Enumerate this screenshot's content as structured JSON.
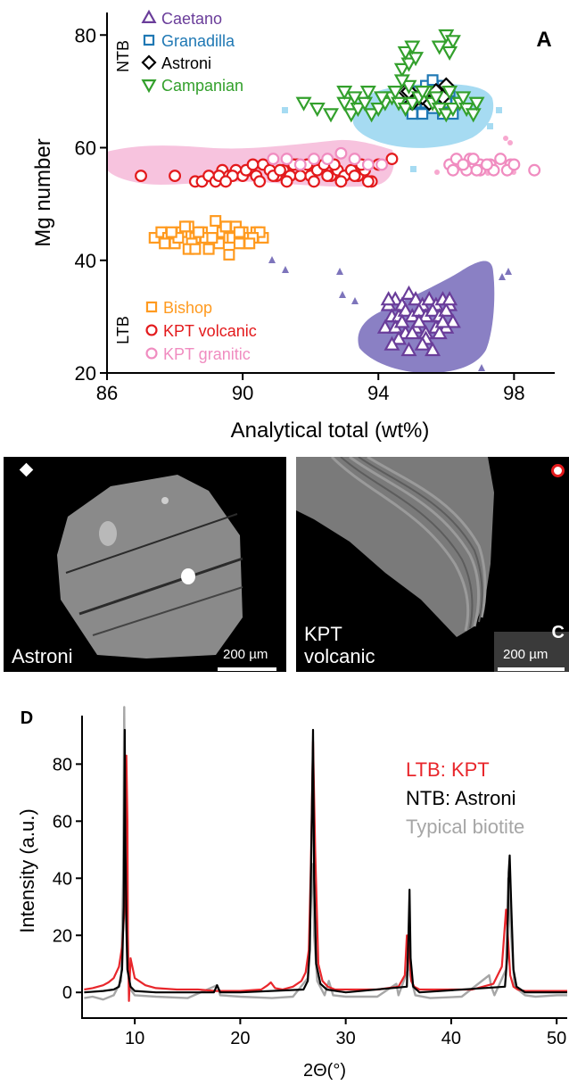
{
  "panel_a": {
    "letter": "A",
    "region_labels": {
      "ntb": "NTB",
      "ltb": "LTB"
    }
  },
  "panel_b": {
    "label": "Astroni",
    "scale": "200 µm",
    "symbol": "diamond-icon"
  },
  "panel_c": {
    "letter": "C",
    "label_line1": "KPT",
    "label_line2": "volcanic",
    "scale": "200 µm",
    "symbol": "circle-icon"
  },
  "panel_d": {
    "letter": "D"
  },
  "chart_data": [
    {
      "type": "scatter",
      "title": "",
      "xlabel": "Analytical total (wt%)",
      "ylabel": "Mg number",
      "xlim": [
        86,
        99.2
      ],
      "ylim": [
        20,
        84
      ],
      "xticks": [
        86,
        90,
        94,
        98
      ],
      "yticks": [
        20,
        40,
        60,
        80
      ],
      "legend_placement": "top-left and bottom-left",
      "series": [
        {
          "name": "Caetano",
          "marker": "triangle-up",
          "color": "#6a3d9a",
          "x": [
            94.3,
            94.5,
            94.7,
            94.9,
            95.1,
            95.3,
            95.5,
            95.7,
            95.9,
            96.1,
            94.4,
            94.6,
            94.8,
            95.0,
            95.2,
            95.4,
            95.6,
            95.8,
            96.0,
            96.2,
            94.2,
            94.5,
            94.8,
            95.1,
            95.4,
            95.7,
            96.0,
            94.6,
            95.0,
            95.4,
            95.8,
            94.9,
            95.3,
            95.6,
            94.4,
            95.2,
            95.9,
            94.7,
            96.1,
            94.3
          ],
          "y": [
            32,
            33,
            32,
            34,
            33,
            32,
            33,
            32,
            33,
            32,
            30,
            30,
            31,
            30,
            31,
            30,
            31,
            30,
            31,
            29,
            28,
            28,
            27,
            28,
            27,
            28,
            28,
            26,
            27,
            26,
            27,
            24,
            25,
            24,
            25,
            29,
            29,
            29,
            33,
            33
          ]
        },
        {
          "name": "Granadilla",
          "marker": "square",
          "color": "#1f78b4",
          "x": [
            95.0,
            95.3,
            95.6,
            95.9,
            96.2,
            95.1,
            95.4,
            95.7,
            96.0,
            96.3,
            95.2,
            95.5,
            95.8,
            96.1,
            95.4,
            95.7,
            96.0,
            95.6,
            95.9
          ],
          "y": [
            66,
            66,
            67,
            66,
            66,
            68,
            68,
            69,
            68,
            68,
            70,
            70,
            69,
            70,
            71,
            71,
            70,
            72,
            71
          ]
        },
        {
          "name": "Astroni",
          "marker": "diamond",
          "color": "#000000",
          "x": [
            94.6,
            94.8,
            95.0,
            95.2,
            95.5,
            95.7,
            96.0,
            94.9,
            95.3,
            95.9
          ],
          "y": [
            69,
            70,
            68,
            69,
            68,
            70,
            71,
            70,
            69,
            69
          ]
        },
        {
          "name": "Campanian",
          "marker": "triangle-down",
          "color": "#33a02c",
          "x": [
            91.8,
            92.2,
            92.6,
            93.0,
            93.2,
            93.4,
            93.6,
            93.8,
            94.0,
            94.2,
            94.4,
            94.6,
            94.8,
            95.0,
            95.2,
            95.4,
            95.6,
            95.8,
            96.0,
            96.2,
            96.4,
            96.6,
            96.8,
            93.0,
            93.3,
            93.7,
            94.1,
            94.5,
            94.9,
            95.3,
            95.7,
            96.1,
            96.5,
            96.9,
            94.7,
            94.9,
            95.1,
            94.8,
            95.0,
            95.8,
            96.0,
            96.2,
            96.1,
            94.7
          ],
          "y": [
            68,
            67,
            66,
            68,
            66,
            67,
            68,
            66,
            67,
            68,
            69,
            68,
            67,
            68,
            69,
            70,
            68,
            67,
            66,
            67,
            68,
            67,
            66,
            70,
            69,
            70,
            69,
            70,
            71,
            70,
            69,
            70,
            69,
            68,
            74,
            75,
            76,
            77,
            78,
            78,
            80,
            79,
            77,
            72
          ]
        },
        {
          "name": "Bishop",
          "marker": "square",
          "color": "#ff9a1f",
          "x": [
            87.4,
            87.6,
            87.8,
            88.0,
            88.2,
            88.4,
            88.6,
            88.8,
            89.0,
            89.2,
            89.4,
            89.6,
            89.8,
            90.0,
            90.2,
            90.4,
            90.6,
            87.7,
            88.1,
            88.5,
            88.9,
            89.3,
            89.7,
            90.1,
            90.5,
            87.9,
            88.3,
            88.7,
            89.1,
            89.5,
            89.9,
            90.3,
            88.4,
            89.0,
            89.6,
            90.2,
            89.2,
            89.5,
            88.6,
            89.9
          ],
          "y": [
            44,
            45,
            44,
            43,
            45,
            46,
            44,
            45,
            43,
            44,
            45,
            44,
            46,
            45,
            44,
            45,
            44,
            43,
            44,
            43,
            44,
            43,
            44,
            43,
            45,
            45,
            46,
            45,
            44,
            46,
            43,
            44,
            42,
            42,
            41,
            43,
            47,
            46,
            42,
            45
          ]
        },
        {
          "name": "KPT volcanic",
          "marker": "circle",
          "color": "#e31a1c",
          "x": [
            87.0,
            88.0,
            88.6,
            88.8,
            89.0,
            89.2,
            89.4,
            89.6,
            89.8,
            90.0,
            90.2,
            90.4,
            90.6,
            90.8,
            91.0,
            91.2,
            91.4,
            91.6,
            91.8,
            92.0,
            92.2,
            92.4,
            92.6,
            92.8,
            93.0,
            93.2,
            93.4,
            93.6,
            93.8,
            94.0,
            94.4,
            89.3,
            89.7,
            90.1,
            90.5,
            90.9,
            91.3,
            91.7,
            92.1,
            92.5,
            92.9,
            93.3,
            93.7,
            90.3,
            91.1,
            91.9,
            92.7,
            93.5,
            89.5,
            91.5
          ],
          "y": [
            55,
            55,
            54,
            54,
            55,
            54,
            56,
            55,
            56,
            55,
            56,
            55,
            57,
            56,
            55,
            56,
            55,
            57,
            56,
            55,
            56,
            57,
            55,
            56,
            55,
            56,
            55,
            56,
            54,
            57,
            58,
            55,
            55,
            56,
            54,
            55,
            54,
            55,
            54,
            55,
            54,
            55,
            54,
            57,
            56,
            57,
            57,
            57,
            54,
            57
          ]
        },
        {
          "name": "KPT granitic",
          "marker": "circle",
          "color": "#f08cc0",
          "x": [
            90.9,
            91.3,
            91.7,
            92.1,
            92.5,
            92.9,
            93.3,
            93.7,
            94.1,
            96.1,
            96.4,
            96.7,
            97.0,
            97.3,
            97.6,
            97.9,
            96.2,
            96.6,
            97.0,
            97.4,
            97.8,
            98.6,
            96.3,
            96.8,
            97.2,
            98.0,
            96.5,
            96.9
          ],
          "y": [
            58,
            58,
            57,
            58,
            58,
            59,
            58,
            57,
            57,
            57,
            57,
            58,
            57,
            57,
            58,
            57,
            56,
            56,
            56,
            56,
            56,
            56,
            58,
            58,
            57,
            57,
            57,
            56
          ]
        }
      ]
    },
    {
      "type": "line",
      "title": "",
      "xlabel": "2Θ(°)",
      "ylabel": "Intensity (a.u.)",
      "xlim": [
        5,
        51
      ],
      "ylim": [
        -9,
        97
      ],
      "xticks": [
        10,
        20,
        30,
        40,
        50
      ],
      "yticks": [
        0,
        20,
        40,
        60,
        80
      ],
      "legend_placement": "top-right",
      "series": [
        {
          "name": "LTB: KPT",
          "color": "#e8262b",
          "x": [
            5.2,
            6,
            7,
            7.5,
            8,
            8.5,
            8.8,
            9.0,
            9.1,
            9.2,
            9.3,
            9.35,
            9.45,
            9.6,
            10,
            11,
            12,
            14,
            16,
            17.7,
            18.3,
            20,
            22,
            22.6,
            22.9,
            23.3,
            24,
            25,
            25.8,
            26.2,
            26.5,
            26.7,
            26.9,
            27.1,
            27.4,
            27.8,
            28.3,
            29,
            31,
            33,
            35,
            35.6,
            35.8,
            36.0,
            36.2,
            36.5,
            37,
            39,
            42,
            44,
            44.8,
            45.2,
            45.4,
            45.6,
            45.9,
            46.3,
            47,
            49,
            51
          ],
          "y": [
            1,
            1.5,
            2.5,
            3.5,
            5,
            9,
            16,
            28,
            45,
            83,
            60,
            20,
            -3,
            12,
            5,
            2.5,
            1.5,
            1,
            1,
            0.5,
            0.5,
            0.5,
            1,
            2.5,
            3.5,
            1.5,
            1,
            2,
            4,
            7,
            15,
            45,
            88,
            50,
            10,
            4,
            2,
            1,
            1,
            1,
            2,
            6,
            20,
            15,
            4,
            2,
            1,
            1,
            1,
            3,
            9,
            29,
            18,
            6,
            2,
            1,
            0.5,
            0.5,
            0.5
          ]
        },
        {
          "name": "NTB: Astroni",
          "color": "#000000",
          "x": [
            5.2,
            7,
            8,
            8.5,
            8.8,
            8.95,
            9.05,
            9.1,
            9.2,
            9.3,
            9.6,
            10,
            12,
            17.5,
            17.8,
            18.1,
            20,
            26,
            26.4,
            26.6,
            26.8,
            26.9,
            27.0,
            27.2,
            27.6,
            28.2,
            30,
            35.8,
            35.95,
            36.05,
            36.15,
            36.4,
            37,
            45.1,
            45.3,
            45.45,
            45.55,
            45.7,
            45.9,
            46.2,
            47,
            51
          ],
          "y": [
            0,
            0.5,
            1,
            2,
            8,
            30,
            92,
            55,
            25,
            8,
            2,
            0.5,
            0,
            0,
            2.5,
            0,
            0,
            1,
            4,
            15,
            65,
            92,
            40,
            10,
            3,
            1,
            0,
            2,
            20,
            36,
            12,
            2,
            0,
            2,
            12,
            42,
            48,
            30,
            8,
            2,
            0,
            0
          ]
        },
        {
          "name": "Typical biotite",
          "color": "#a6a6a6",
          "x": [
            5.2,
            6,
            7,
            8,
            8.7,
            8.9,
            9.0,
            9.1,
            9.3,
            9.6,
            10,
            12,
            15,
            17.8,
            18.1,
            20,
            23,
            25,
            26.4,
            26.8,
            26.9,
            27.0,
            27.3,
            28,
            28.4,
            28.8,
            30,
            33,
            34.8,
            35.0,
            35.9,
            36.0,
            36.1,
            36.6,
            38,
            41,
            43.6,
            43.8,
            44.1,
            45.2,
            45.4,
            45.6,
            46,
            47,
            48,
            50,
            51
          ],
          "y": [
            -2,
            -1.5,
            -2.5,
            -1,
            4,
            40,
            100,
            35,
            8,
            1,
            -1,
            -1.5,
            -2,
            2.5,
            -1,
            -1.5,
            -2,
            -1.5,
            5,
            40,
            45,
            20,
            4,
            -1,
            4,
            -1,
            -1.5,
            -1.5,
            3,
            -1,
            8,
            18,
            6,
            -1,
            -2,
            -1.5,
            6,
            2,
            -1,
            8,
            40,
            25,
            2,
            -1,
            -1.5,
            -1,
            -1
          ]
        }
      ]
    }
  ]
}
